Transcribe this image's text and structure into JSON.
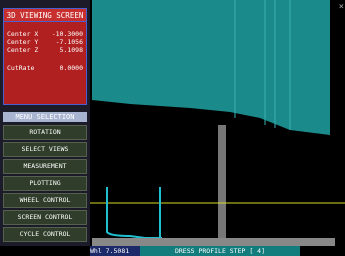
{
  "header": {
    "title": "3D VIEWING SCREEN"
  },
  "readouts": [
    {
      "label": "Center X",
      "value": "-10.3000"
    },
    {
      "label": "Center Y",
      "value": "-7.1056"
    },
    {
      "label": "Center Z",
      "value": "5.1098"
    },
    {
      "label": "CutRate",
      "value": "0.0000"
    }
  ],
  "menu": {
    "title": "MENU SELECTION",
    "items": [
      "ROTATION",
      "SELECT VIEWS",
      "MEASUREMENT",
      "PLOTTING",
      "WHEEL CONTROL",
      "SCREEN CONTROL",
      "CYCLE CONTROL"
    ]
  },
  "status": {
    "wheel_label": "Whl",
    "wheel_value": "7.5081",
    "message": "DRESS PROFILE STEP [ 4]"
  },
  "close": "×"
}
